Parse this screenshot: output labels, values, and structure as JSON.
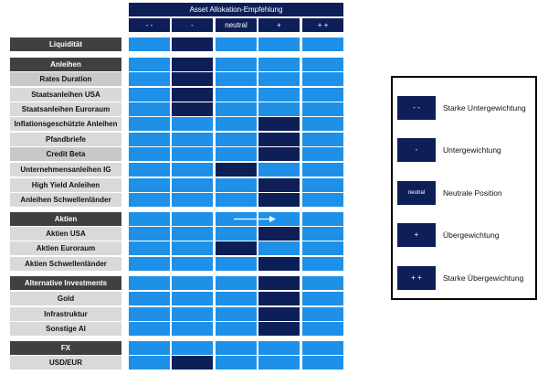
{
  "header": {
    "title": "Asset Allokation-Empfehlung",
    "columns": [
      "- -",
      "-",
      "neutral",
      "+",
      "+ +"
    ]
  },
  "colors": {
    "light": "#1e90e8",
    "dark": "#0e1f58",
    "section": "#404040",
    "sub": "#c8c8c8",
    "item": "#d9d9d9"
  },
  "rows": [
    {
      "label": "Liquidität",
      "kind": "section",
      "rating": 1
    },
    {
      "label": "Anleihen",
      "kind": "section",
      "rating": 1
    },
    {
      "label": "Rates Duration",
      "kind": "sub",
      "rating": 1
    },
    {
      "label": "Staatsanleihen USA",
      "kind": "item",
      "rating": 1
    },
    {
      "label": "Staatsanleihen Euroraum",
      "kind": "item",
      "rating": 1
    },
    {
      "label": "Inflationsgeschützte Anleihen",
      "kind": "item",
      "rating": 3
    },
    {
      "label": "Pfandbriefe",
      "kind": "item",
      "rating": 3
    },
    {
      "label": "Credit Beta",
      "kind": "sub",
      "rating": 3
    },
    {
      "label": "Unternehmensanleihen IG",
      "kind": "item",
      "rating": 2
    },
    {
      "label": "High Yield Anleihen",
      "kind": "item",
      "rating": 3
    },
    {
      "label": "Anleihen Schwellenländer",
      "kind": "item",
      "rating": 3
    },
    {
      "label": "Aktien",
      "kind": "section",
      "rating": null,
      "arrow_from": 2,
      "arrow_to": 3
    },
    {
      "label": "Aktien USA",
      "kind": "item",
      "rating": 3
    },
    {
      "label": "Aktien Euroraum",
      "kind": "item",
      "rating": 2
    },
    {
      "label": "Aktien Schwellenländer",
      "kind": "item",
      "rating": 3
    },
    {
      "label": "Alternative Investments",
      "kind": "section",
      "rating": 3
    },
    {
      "label": "Gold",
      "kind": "item",
      "rating": 3
    },
    {
      "label": "Infrastruktur",
      "kind": "item",
      "rating": 3
    },
    {
      "label": "Sonstige AI",
      "kind": "item",
      "rating": 3
    },
    {
      "label": "FX",
      "kind": "section",
      "rating": null
    },
    {
      "label": "USD/EUR",
      "kind": "item",
      "rating": 1
    }
  ],
  "legend": [
    {
      "symbol": "- -",
      "text": "Starke Untergewichtung"
    },
    {
      "symbol": "-",
      "text": "Untergewichtung"
    },
    {
      "symbol": "neutral",
      "text": "Neutrale Position"
    },
    {
      "symbol": "+",
      "text": "Übergewichtung"
    },
    {
      "symbol": "+ +",
      "text": "Starke Übergewichtung"
    }
  ]
}
